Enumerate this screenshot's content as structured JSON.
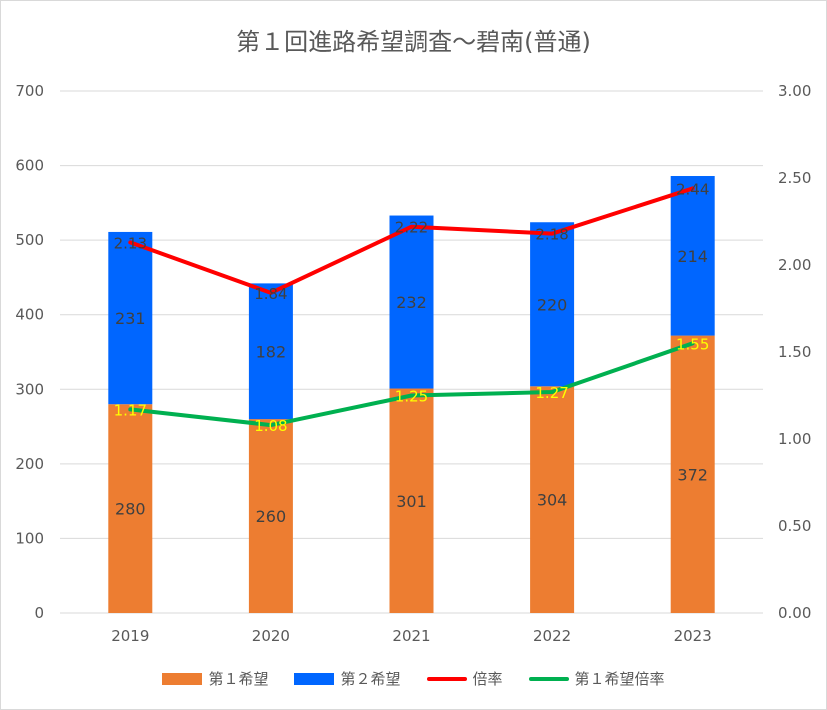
{
  "chart_data": {
    "type": "bar",
    "title": "第１回進路希望調査〜碧南(普通)",
    "categories": [
      "2019",
      "2020",
      "2021",
      "2022",
      "2023"
    ],
    "series": [
      {
        "name": "第１希望",
        "kind": "bar",
        "axis": "left",
        "color": "#ed7d31",
        "values": [
          280,
          260,
          301,
          304,
          372
        ]
      },
      {
        "name": "第２希望",
        "kind": "bar",
        "axis": "left",
        "color": "#0066ff",
        "values": [
          231,
          182,
          232,
          220,
          214
        ]
      },
      {
        "name": "倍率",
        "kind": "line",
        "axis": "right",
        "color": "#ff0000",
        "values": [
          2.13,
          1.84,
          2.22,
          2.18,
          2.44
        ],
        "labels": [
          "2.13",
          "1.84",
          "2.22",
          "2.18",
          "2.44"
        ]
      },
      {
        "name": "第１希望倍率",
        "kind": "line",
        "axis": "right",
        "color": "#00b050",
        "values": [
          1.17,
          1.08,
          1.25,
          1.27,
          1.55
        ],
        "labels": [
          "1.17",
          "1.08",
          "1.25",
          "1.27",
          "1.55"
        ]
      }
    ],
    "stacked": true,
    "ylim": [
      0,
      700
    ],
    "y_ticks": [
      "0",
      "100",
      "200",
      "300",
      "400",
      "500",
      "600",
      "700"
    ],
    "y2lim": [
      0,
      3
    ],
    "y2_ticks": [
      "0.00",
      "0.50",
      "1.00",
      "1.50",
      "2.00",
      "2.50",
      "3.00"
    ],
    "grid": true,
    "legend_position": "bottom",
    "label_colors": {
      "bar": "#404040",
      "line2": "#ffff00",
      "line1": "#404040"
    }
  }
}
